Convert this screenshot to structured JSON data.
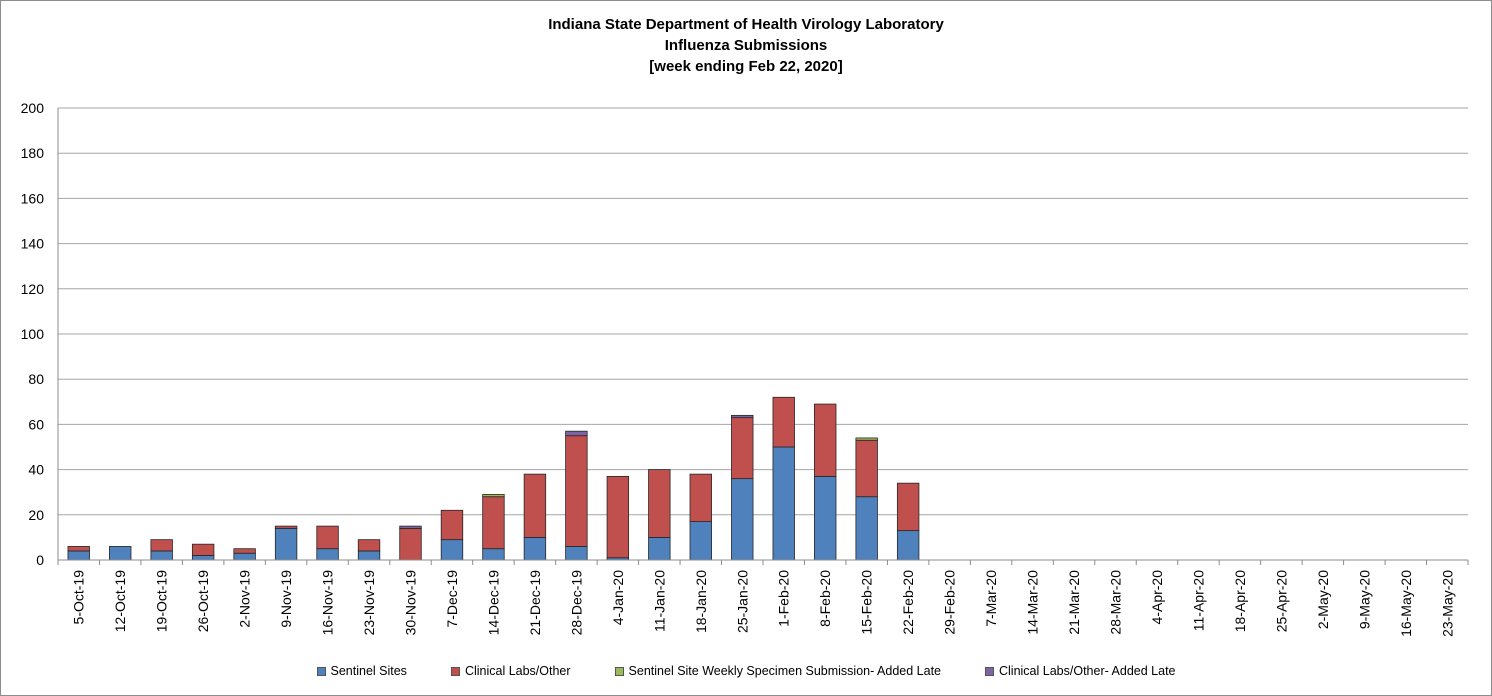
{
  "chart_data": {
    "type": "bar",
    "stacked": true,
    "title": [
      "Indiana State Department of Health Virology Laboratory",
      "Influenza Submissions",
      "[week ending Feb 22, 2020]"
    ],
    "xlabel": "",
    "ylabel": "",
    "ylim": [
      0,
      200
    ],
    "yticks": [
      0,
      20,
      40,
      60,
      80,
      100,
      120,
      140,
      160,
      180,
      200
    ],
    "grid": true,
    "legend_position": "bottom",
    "categories": [
      "5-Oct-19",
      "12-Oct-19",
      "19-Oct-19",
      "26-Oct-19",
      "2-Nov-19",
      "9-Nov-19",
      "16-Nov-19",
      "23-Nov-19",
      "30-Nov-19",
      "7-Dec-19",
      "14-Dec-19",
      "21-Dec-19",
      "28-Dec-19",
      "4-Jan-20",
      "11-Jan-20",
      "18-Jan-20",
      "25-Jan-20",
      "1-Feb-20",
      "8-Feb-20",
      "15-Feb-20",
      "22-Feb-20",
      "29-Feb-20",
      "7-Mar-20",
      "14-Mar-20",
      "21-Mar-20",
      "28-Mar-20",
      "4-Apr-20",
      "11-Apr-20",
      "18-Apr-20",
      "25-Apr-20",
      "2-May-20",
      "9-May-20",
      "16-May-20",
      "23-May-20"
    ],
    "series": [
      {
        "name": "Sentinel Sites",
        "color": "#4f81bd",
        "values": [
          4,
          6,
          4,
          2,
          3,
          14,
          5,
          4,
          0,
          9,
          5,
          10,
          6,
          1,
          10,
          17,
          36,
          50,
          37,
          28,
          13,
          0,
          0,
          0,
          0,
          0,
          0,
          0,
          0,
          0,
          0,
          0,
          0,
          0
        ]
      },
      {
        "name": "Clinical Labs/Other",
        "color": "#c0504d",
        "values": [
          2,
          0,
          5,
          5,
          2,
          1,
          10,
          5,
          14,
          13,
          23,
          28,
          49,
          36,
          30,
          21,
          27,
          22,
          32,
          25,
          21,
          0,
          0,
          0,
          0,
          0,
          0,
          0,
          0,
          0,
          0,
          0,
          0,
          0
        ]
      },
      {
        "name": "Sentinel Site Weekly Specimen Submission- Added Late",
        "color": "#9bbb59",
        "values": [
          0,
          0,
          0,
          0,
          0,
          0,
          0,
          0,
          0,
          0,
          1,
          0,
          0,
          0,
          0,
          0,
          0,
          0,
          0,
          1,
          0,
          0,
          0,
          0,
          0,
          0,
          0,
          0,
          0,
          0,
          0,
          0,
          0,
          0
        ]
      },
      {
        "name": "Clinical Labs/Other- Added Late",
        "color": "#8064a2",
        "values": [
          0,
          0,
          0,
          0,
          0,
          0,
          0,
          0,
          1,
          0,
          0,
          0,
          2,
          0,
          0,
          0,
          1,
          0,
          0,
          0,
          0,
          0,
          0,
          0,
          0,
          0,
          0,
          0,
          0,
          0,
          0,
          0,
          0,
          0
        ]
      }
    ]
  }
}
